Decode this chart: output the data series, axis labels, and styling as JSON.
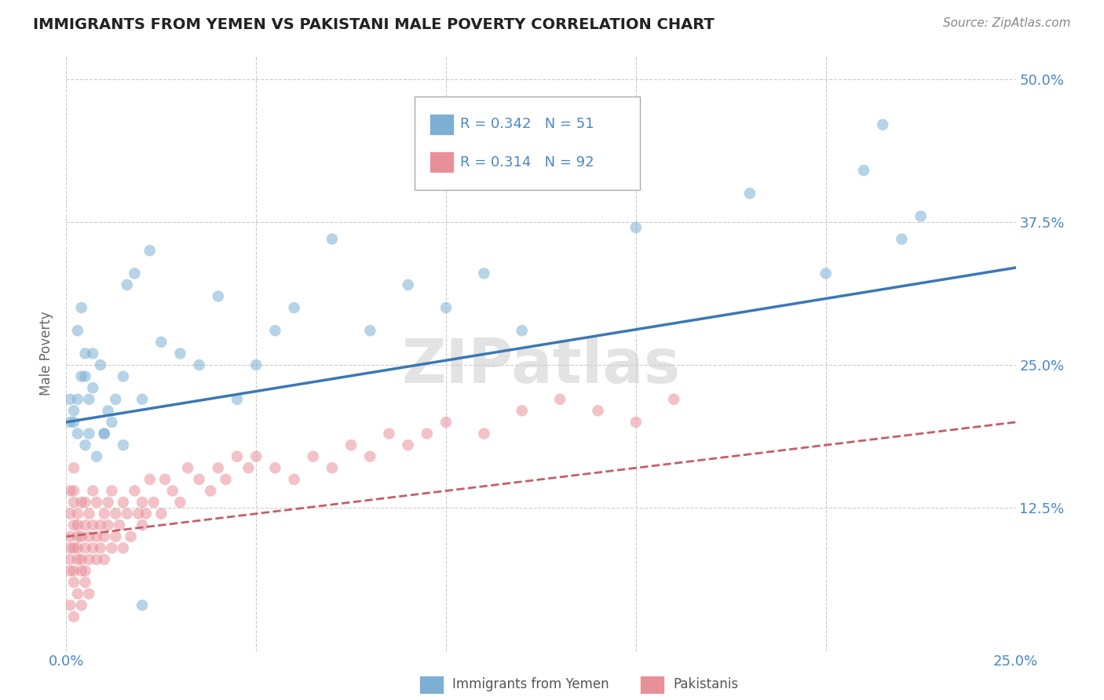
{
  "title": "IMMIGRANTS FROM YEMEN VS PAKISTANI MALE POVERTY CORRELATION CHART",
  "source": "Source: ZipAtlas.com",
  "ylabel": "Male Poverty",
  "xlim": [
    0.0,
    0.25
  ],
  "ylim": [
    0.0,
    0.52
  ],
  "xticks": [
    0.0,
    0.05,
    0.1,
    0.15,
    0.2,
    0.25
  ],
  "xticklabels": [
    "0.0%",
    "",
    "",
    "",
    "",
    "25.0%"
  ],
  "yticks": [
    0.0,
    0.125,
    0.25,
    0.375,
    0.5
  ],
  "ytick_right_labels": [
    "",
    "12.5%",
    "25.0%",
    "37.5%",
    "50.0%"
  ],
  "yemen_color": "#7bafd4",
  "pakistan_color": "#e8909a",
  "legend_R1": "R = 0.342",
  "legend_N1": "N = 51",
  "legend_R2": "R = 0.314",
  "legend_N2": "N = 92",
  "watermark": "ZIPatlas",
  "yemen_trend_x": [
    0.0,
    0.25
  ],
  "yemen_trend_y": [
    0.2,
    0.335
  ],
  "pakistan_trend_x": [
    0.0,
    0.25
  ],
  "pakistan_trend_y": [
    0.1,
    0.2
  ],
  "yemen_scatter_x": [
    0.001,
    0.001,
    0.002,
    0.003,
    0.003,
    0.004,
    0.004,
    0.005,
    0.005,
    0.006,
    0.006,
    0.007,
    0.008,
    0.009,
    0.01,
    0.011,
    0.012,
    0.013,
    0.015,
    0.015,
    0.016,
    0.018,
    0.02,
    0.022,
    0.025,
    0.03,
    0.035,
    0.04,
    0.045,
    0.05,
    0.055,
    0.06,
    0.07,
    0.08,
    0.09,
    0.1,
    0.11,
    0.12,
    0.15,
    0.18,
    0.2,
    0.21,
    0.215,
    0.22,
    0.225,
    0.002,
    0.003,
    0.005,
    0.007,
    0.01,
    0.02
  ],
  "yemen_scatter_y": [
    0.2,
    0.22,
    0.21,
    0.19,
    0.28,
    0.24,
    0.3,
    0.18,
    0.26,
    0.22,
    0.19,
    0.23,
    0.17,
    0.25,
    0.19,
    0.21,
    0.2,
    0.22,
    0.24,
    0.18,
    0.32,
    0.33,
    0.22,
    0.35,
    0.27,
    0.26,
    0.25,
    0.31,
    0.22,
    0.25,
    0.28,
    0.3,
    0.36,
    0.28,
    0.32,
    0.3,
    0.33,
    0.28,
    0.37,
    0.4,
    0.33,
    0.42,
    0.46,
    0.36,
    0.38,
    0.2,
    0.22,
    0.24,
    0.26,
    0.19,
    0.04
  ],
  "pakistan_scatter_x": [
    0.001,
    0.001,
    0.001,
    0.001,
    0.001,
    0.002,
    0.002,
    0.002,
    0.002,
    0.002,
    0.002,
    0.003,
    0.003,
    0.003,
    0.003,
    0.003,
    0.004,
    0.004,
    0.004,
    0.004,
    0.005,
    0.005,
    0.005,
    0.005,
    0.006,
    0.006,
    0.006,
    0.007,
    0.007,
    0.007,
    0.008,
    0.008,
    0.008,
    0.009,
    0.009,
    0.01,
    0.01,
    0.01,
    0.011,
    0.011,
    0.012,
    0.012,
    0.013,
    0.013,
    0.014,
    0.015,
    0.015,
    0.016,
    0.017,
    0.018,
    0.019,
    0.02,
    0.02,
    0.021,
    0.022,
    0.023,
    0.025,
    0.026,
    0.028,
    0.03,
    0.032,
    0.035,
    0.038,
    0.04,
    0.042,
    0.045,
    0.048,
    0.05,
    0.055,
    0.06,
    0.065,
    0.07,
    0.075,
    0.08,
    0.085,
    0.09,
    0.095,
    0.1,
    0.11,
    0.12,
    0.13,
    0.14,
    0.15,
    0.16,
    0.001,
    0.002,
    0.003,
    0.004,
    0.005,
    0.006,
    0.001,
    0.002
  ],
  "pakistan_scatter_y": [
    0.1,
    0.12,
    0.08,
    0.07,
    0.09,
    0.11,
    0.13,
    0.09,
    0.14,
    0.07,
    0.06,
    0.1,
    0.08,
    0.12,
    0.09,
    0.11,
    0.1,
    0.07,
    0.13,
    0.08,
    0.11,
    0.09,
    0.13,
    0.07,
    0.1,
    0.12,
    0.08,
    0.11,
    0.09,
    0.14,
    0.1,
    0.08,
    0.13,
    0.11,
    0.09,
    0.12,
    0.1,
    0.08,
    0.13,
    0.11,
    0.09,
    0.14,
    0.12,
    0.1,
    0.11,
    0.09,
    0.13,
    0.12,
    0.1,
    0.14,
    0.12,
    0.11,
    0.13,
    0.12,
    0.15,
    0.13,
    0.12,
    0.15,
    0.14,
    0.13,
    0.16,
    0.15,
    0.14,
    0.16,
    0.15,
    0.17,
    0.16,
    0.17,
    0.16,
    0.15,
    0.17,
    0.16,
    0.18,
    0.17,
    0.19,
    0.18,
    0.19,
    0.2,
    0.19,
    0.21,
    0.22,
    0.21,
    0.2,
    0.22,
    0.04,
    0.03,
    0.05,
    0.04,
    0.06,
    0.05,
    0.14,
    0.16
  ]
}
